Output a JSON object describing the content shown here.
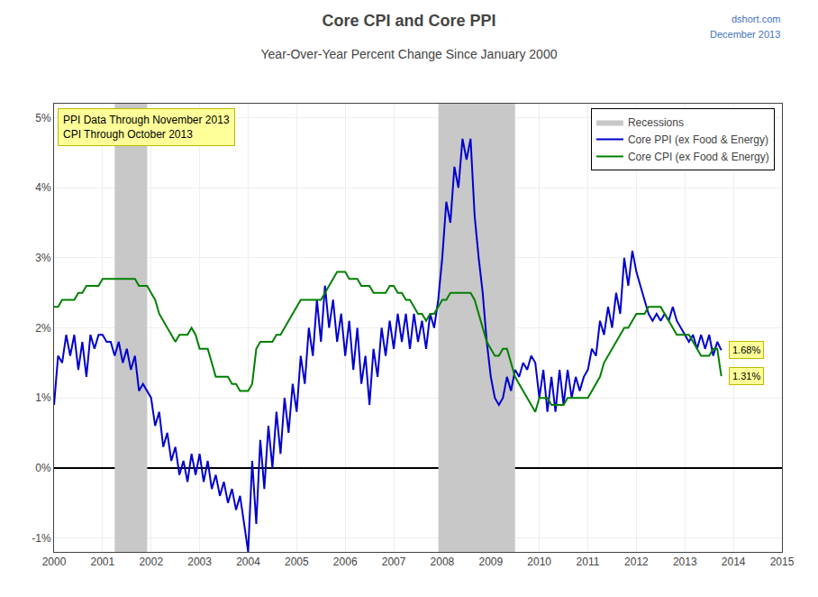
{
  "chart_data": {
    "type": "line",
    "title": "Core CPI and Core PPI",
    "subtitle": "Year-Over-Year Percent Change Since January 2000",
    "annotations": [
      "dshort.com",
      "December 2013",
      "PPI Data Through November 2013\nCPI Through October 2013"
    ],
    "grid": true,
    "legend": "upper right",
    "xlim": [
      2000.0,
      2015.0
    ],
    "xticks": [
      2000,
      2001,
      2002,
      2003,
      2004,
      2005,
      2006,
      2007,
      2008,
      2009,
      2010,
      2011,
      2012,
      2013,
      2014,
      2015
    ],
    "ylim": [
      -0.012,
      0.052
    ],
    "yticks": [
      {
        "value": -0.01,
        "label": "-1%"
      },
      {
        "value": 0.0,
        "label": "0%"
      },
      {
        "value": 0.01,
        "label": "1%"
      },
      {
        "value": 0.02,
        "label": "2%"
      },
      {
        "value": 0.03,
        "label": "3%"
      },
      {
        "value": 0.04,
        "label": "4%"
      },
      {
        "value": 0.05,
        "label": "5%"
      }
    ],
    "x": [
      2000.0,
      2000.083,
      2000.167,
      2000.25,
      2000.333,
      2000.417,
      2000.5,
      2000.583,
      2000.667,
      2000.75,
      2000.833,
      2000.917,
      2001.0,
      2001.083,
      2001.167,
      2001.25,
      2001.333,
      2001.417,
      2001.5,
      2001.583,
      2001.667,
      2001.75,
      2001.833,
      2001.917,
      2002.0,
      2002.083,
      2002.167,
      2002.25,
      2002.333,
      2002.417,
      2002.5,
      2002.583,
      2002.667,
      2002.75,
      2002.833,
      2002.917,
      2003.0,
      2003.083,
      2003.167,
      2003.25,
      2003.333,
      2003.417,
      2003.5,
      2003.583,
      2003.667,
      2003.75,
      2003.833,
      2003.917,
      2004.0,
      2004.083,
      2004.167,
      2004.25,
      2004.333,
      2004.417,
      2004.5,
      2004.583,
      2004.667,
      2004.75,
      2004.833,
      2004.917,
      2005.0,
      2005.083,
      2005.167,
      2005.25,
      2005.333,
      2005.417,
      2005.5,
      2005.583,
      2005.667,
      2005.75,
      2005.833,
      2005.917,
      2006.0,
      2006.083,
      2006.167,
      2006.25,
      2006.333,
      2006.417,
      2006.5,
      2006.583,
      2006.667,
      2006.75,
      2006.833,
      2006.917,
      2007.0,
      2007.083,
      2007.167,
      2007.25,
      2007.333,
      2007.417,
      2007.5,
      2007.583,
      2007.667,
      2007.75,
      2007.833,
      2007.917,
      2008.0,
      2008.083,
      2008.167,
      2008.25,
      2008.333,
      2008.417,
      2008.5,
      2008.583,
      2008.667,
      2008.75,
      2008.833,
      2008.917,
      2009.0,
      2009.083,
      2009.167,
      2009.25,
      2009.333,
      2009.417,
      2009.5,
      2009.583,
      2009.667,
      2009.75,
      2009.833,
      2009.917,
      2010.0,
      2010.083,
      2010.167,
      2010.25,
      2010.333,
      2010.417,
      2010.5,
      2010.583,
      2010.667,
      2010.75,
      2010.833,
      2010.917,
      2011.0,
      2011.083,
      2011.167,
      2011.25,
      2011.333,
      2011.417,
      2011.5,
      2011.583,
      2011.667,
      2011.75,
      2011.833,
      2011.917,
      2012.0,
      2012.083,
      2012.167,
      2012.25,
      2012.333,
      2012.417,
      2012.5,
      2012.583,
      2012.667,
      2012.75,
      2012.833,
      2012.917,
      2013.0,
      2013.083,
      2013.167,
      2013.25,
      2013.333,
      2013.417,
      2013.5,
      2013.583,
      2013.667,
      2013.75
    ],
    "series": [
      {
        "name": "Recessions",
        "type": "span",
        "color": "#C8C8C8",
        "spans": [
          [
            2001.25,
            2001.92
          ],
          [
            2007.92,
            2009.5
          ]
        ]
      },
      {
        "name": "Core PPI (ex Food & Energy)",
        "type": "line",
        "color": "#0000CC",
        "values": [
          0.009,
          0.016,
          0.015,
          0.019,
          0.016,
          0.019,
          0.014,
          0.018,
          0.013,
          0.019,
          0.017,
          0.019,
          0.019,
          0.018,
          0.018,
          0.016,
          0.018,
          0.015,
          0.017,
          0.014,
          0.016,
          0.011,
          0.012,
          0.011,
          0.01,
          0.006,
          0.008,
          0.003,
          0.005,
          0.001,
          0.003,
          -0.001,
          0.001,
          -0.002,
          0.002,
          -0.001,
          0.002,
          -0.002,
          0.001,
          -0.003,
          -0.001,
          -0.004,
          -0.002,
          -0.005,
          -0.003,
          -0.006,
          -0.004,
          -0.008,
          -0.012,
          0.001,
          -0.008,
          0.004,
          -0.003,
          0.006,
          0.0,
          0.008,
          0.002,
          0.01,
          0.005,
          0.012,
          0.008,
          0.016,
          0.012,
          0.02,
          0.016,
          0.024,
          0.018,
          0.026,
          0.02,
          0.024,
          0.018,
          0.022,
          0.016,
          0.021,
          0.014,
          0.02,
          0.012,
          0.016,
          0.009,
          0.017,
          0.013,
          0.02,
          0.016,
          0.021,
          0.017,
          0.022,
          0.018,
          0.022,
          0.017,
          0.022,
          0.018,
          0.021,
          0.017,
          0.022,
          0.02,
          0.024,
          0.03,
          0.038,
          0.035,
          0.043,
          0.04,
          0.047,
          0.044,
          0.047,
          0.036,
          0.03,
          0.025,
          0.018,
          0.013,
          0.01,
          0.009,
          0.01,
          0.013,
          0.011,
          0.014,
          0.013,
          0.015,
          0.014,
          0.016,
          0.015,
          0.01,
          0.014,
          0.008,
          0.013,
          0.008,
          0.014,
          0.009,
          0.014,
          0.01,
          0.013,
          0.011,
          0.013,
          0.014,
          0.017,
          0.016,
          0.021,
          0.019,
          0.023,
          0.02,
          0.025,
          0.022,
          0.03,
          0.026,
          0.031,
          0.028,
          0.026,
          0.024,
          0.022,
          0.021,
          0.022,
          0.021,
          0.022,
          0.021,
          0.023,
          0.021,
          0.02,
          0.019,
          0.018,
          0.019,
          0.017,
          0.019,
          0.017,
          0.019,
          0.016,
          0.018,
          0.0168
        ],
        "value_labels": [
          null,
          null,
          null,
          null,
          null,
          null,
          null,
          null,
          null,
          null,
          null,
          null,
          null,
          null,
          null,
          null,
          null,
          null,
          null,
          null,
          null,
          null,
          null,
          null,
          null,
          null,
          null,
          null,
          null,
          null,
          null,
          null,
          null,
          null,
          null,
          null,
          null,
          null,
          null,
          null,
          null,
          null,
          null,
          null,
          null,
          null,
          null,
          null,
          null,
          null,
          null,
          null,
          null,
          null,
          null,
          null,
          null,
          null,
          null,
          null,
          null,
          null,
          null,
          null,
          null,
          null,
          null,
          null,
          null,
          null,
          null,
          null,
          null,
          null,
          null,
          null,
          null,
          null,
          null,
          null,
          null,
          null,
          null,
          null,
          null,
          null,
          null,
          null,
          null,
          null,
          null,
          null,
          null,
          null,
          null,
          null,
          null,
          null,
          null,
          null,
          null,
          null,
          null,
          null,
          null,
          null,
          null,
          null,
          null,
          null,
          null,
          null,
          null,
          null,
          null,
          null,
          null,
          null,
          null,
          null,
          null,
          null,
          null,
          null,
          null,
          null,
          null,
          null,
          null,
          null,
          null,
          null,
          null,
          null,
          null,
          null,
          null,
          null,
          null,
          null,
          null,
          null,
          null,
          null,
          null,
          null,
          null,
          null,
          null,
          null,
          null,
          null,
          null,
          null,
          null,
          null,
          null,
          null,
          null,
          null,
          null,
          null,
          null,
          null,
          null,
          "1.68%"
        ]
      },
      {
        "name": "Core CPI (ex Food & Energy)",
        "type": "line",
        "color": "#008000",
        "values": [
          0.023,
          0.023,
          0.024,
          0.024,
          0.024,
          0.024,
          0.025,
          0.025,
          0.026,
          0.026,
          0.026,
          0.026,
          0.027,
          0.027,
          0.027,
          0.027,
          0.027,
          0.027,
          0.027,
          0.027,
          0.027,
          0.026,
          0.026,
          0.026,
          0.025,
          0.024,
          0.022,
          0.021,
          0.02,
          0.019,
          0.018,
          0.019,
          0.019,
          0.019,
          0.02,
          0.019,
          0.017,
          0.017,
          0.017,
          0.015,
          0.013,
          0.013,
          0.013,
          0.013,
          0.012,
          0.012,
          0.011,
          0.011,
          0.011,
          0.012,
          0.017,
          0.018,
          0.018,
          0.018,
          0.018,
          0.019,
          0.019,
          0.02,
          0.021,
          0.022,
          0.023,
          0.024,
          0.024,
          0.024,
          0.024,
          0.024,
          0.024,
          0.025,
          0.026,
          0.027,
          0.028,
          0.028,
          0.028,
          0.027,
          0.027,
          0.027,
          0.026,
          0.026,
          0.026,
          0.025,
          0.025,
          0.025,
          0.025,
          0.026,
          0.026,
          0.025,
          0.025,
          0.024,
          0.024,
          0.023,
          0.022,
          0.022,
          0.021,
          0.022,
          0.022,
          0.023,
          0.024,
          0.024,
          0.025,
          0.025,
          0.025,
          0.025,
          0.025,
          0.025,
          0.024,
          0.022,
          0.02,
          0.018,
          0.017,
          0.016,
          0.016,
          0.017,
          0.017,
          0.015,
          0.013,
          0.012,
          0.011,
          0.01,
          0.009,
          0.008,
          0.01,
          0.01,
          0.01,
          0.009,
          0.009,
          0.009,
          0.009,
          0.01,
          0.01,
          0.01,
          0.01,
          0.01,
          0.01,
          0.011,
          0.012,
          0.013,
          0.015,
          0.016,
          0.017,
          0.018,
          0.019,
          0.02,
          0.02,
          0.021,
          0.022,
          0.022,
          0.022,
          0.023,
          0.023,
          0.023,
          0.023,
          0.022,
          0.021,
          0.02,
          0.019,
          0.019,
          0.019,
          0.019,
          0.018,
          0.017,
          0.016,
          0.016,
          0.016,
          0.017,
          0.017,
          0.0131
        ],
        "value_labels": [
          null,
          null,
          null,
          null,
          null,
          null,
          null,
          null,
          null,
          null,
          null,
          null,
          null,
          null,
          null,
          null,
          null,
          null,
          null,
          null,
          null,
          null,
          null,
          null,
          null,
          null,
          null,
          null,
          null,
          null,
          null,
          null,
          null,
          null,
          null,
          null,
          null,
          null,
          null,
          null,
          null,
          null,
          null,
          null,
          null,
          null,
          null,
          null,
          null,
          null,
          null,
          null,
          null,
          null,
          null,
          null,
          null,
          null,
          null,
          null,
          null,
          null,
          null,
          null,
          null,
          null,
          null,
          null,
          null,
          null,
          null,
          null,
          null,
          null,
          null,
          null,
          null,
          null,
          null,
          null,
          null,
          null,
          null,
          null,
          null,
          null,
          null,
          null,
          null,
          null,
          null,
          null,
          null,
          null,
          null,
          null,
          null,
          null,
          null,
          null,
          null,
          null,
          null,
          null,
          null,
          null,
          null,
          null,
          null,
          null,
          null,
          null,
          null,
          null,
          null,
          null,
          null,
          null,
          null,
          null,
          null,
          null,
          null,
          null,
          null,
          null,
          null,
          null,
          null,
          null,
          null,
          null,
          null,
          null,
          null,
          null,
          null,
          null,
          null,
          null,
          null,
          null,
          null,
          null,
          null,
          null,
          null,
          null,
          null,
          null,
          null,
          null,
          null,
          null,
          null,
          null,
          null,
          null,
          null,
          null,
          null,
          null,
          null,
          null,
          null,
          "1.31%"
        ]
      }
    ]
  }
}
